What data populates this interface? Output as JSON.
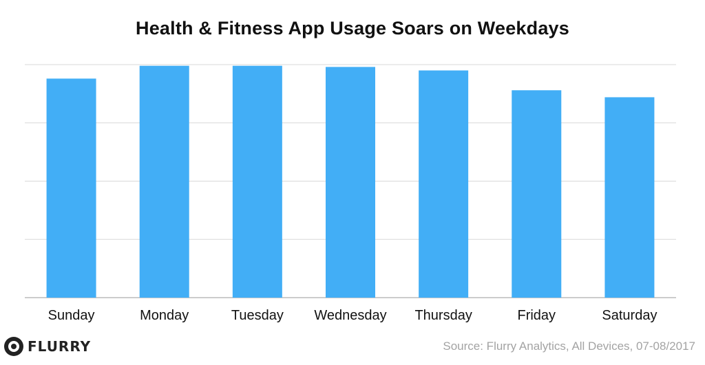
{
  "chart_data": {
    "type": "bar",
    "title": "Health & Fitness App Usage Soars on Weekdays",
    "categories": [
      "Sunday",
      "Monday",
      "Tuesday",
      "Wednesday",
      "Thursday",
      "Friday",
      "Saturday"
    ],
    "values": [
      94,
      99.5,
      99.5,
      99,
      97.5,
      89,
      86
    ],
    "xlabel": "",
    "ylabel": "",
    "ylim": [
      0,
      100
    ],
    "grid": true,
    "y_tick_labels_visible": false,
    "bar_color": "#42aef6"
  },
  "footer": {
    "logo_text": "FLURRY",
    "source": "Source: Flurry Analytics, All Devices, 07-08/2017"
  }
}
